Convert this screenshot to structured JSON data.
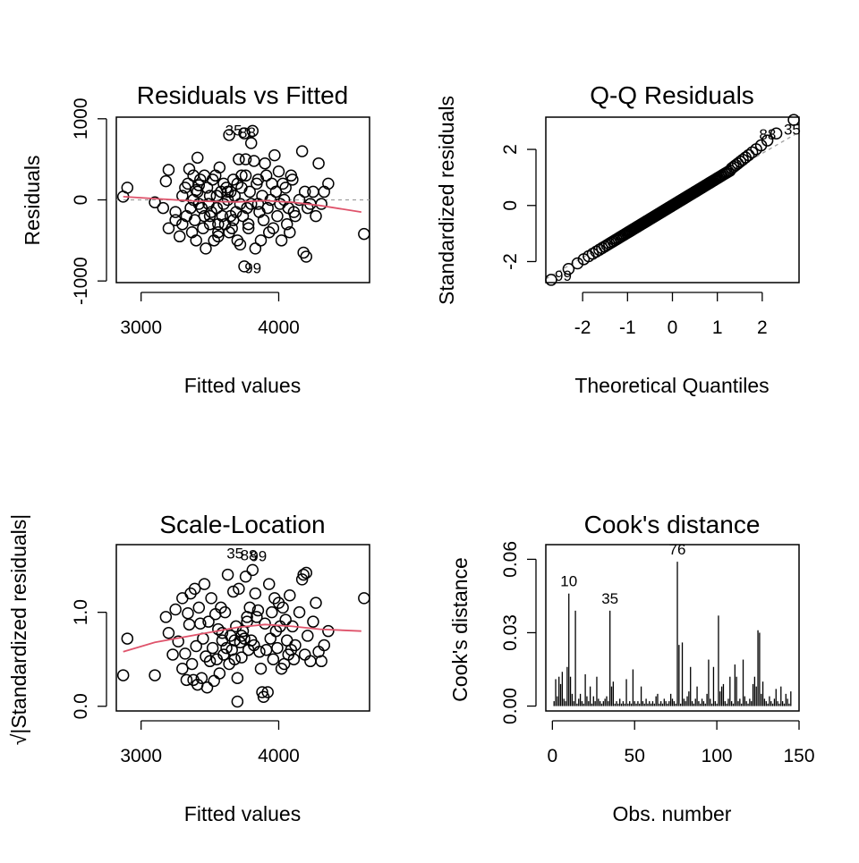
{
  "colors": {
    "smooth": "#DF536B",
    "ref": "#9E9E9E",
    "ink": "#000000"
  },
  "chart_data": [
    {
      "type": "scatter",
      "title": "Residuals vs Fitted",
      "xlabel": "Fitted values",
      "ylabel": "Residuals",
      "xlim": [
        2820,
        4660
      ],
      "ylim": [
        -1020,
        1020
      ],
      "xticks": [
        3000,
        4000
      ],
      "yticks": [
        -1000,
        0,
        1000
      ],
      "reference_y": 0,
      "smooth": [
        [
          2870,
          40
        ],
        [
          3100,
          15
        ],
        [
          3400,
          -15
        ],
        [
          3700,
          -25
        ],
        [
          3900,
          -10
        ],
        [
          4100,
          -30
        ],
        [
          4300,
          -70
        ],
        [
          4600,
          -150
        ]
      ],
      "outlier_labels": [
        {
          "text": "35",
          "x": 3650,
          "y": 860
        },
        {
          "text": "88",
          "x": 3750,
          "y": 830
        },
        {
          "text": "99",
          "x": 3790,
          "y": -840
        }
      ],
      "points": [
        [
          2870,
          40
        ],
        [
          2900,
          150
        ],
        [
          3100,
          -30
        ],
        [
          3200,
          -350
        ],
        [
          3250,
          -150
        ],
        [
          3160,
          -100
        ],
        [
          3180,
          230
        ],
        [
          3200,
          370
        ],
        [
          3250,
          -250
        ],
        [
          3280,
          -450
        ],
        [
          3300,
          50
        ],
        [
          3300,
          -300
        ],
        [
          3320,
          150
        ],
        [
          3330,
          -200
        ],
        [
          3340,
          200
        ],
        [
          3350,
          380
        ],
        [
          3360,
          -100
        ],
        [
          3370,
          -400
        ],
        [
          3380,
          300
        ],
        [
          3380,
          0
        ],
        [
          3390,
          -250
        ],
        [
          3400,
          120
        ],
        [
          3400,
          -500
        ],
        [
          3410,
          100
        ],
        [
          3410,
          520
        ],
        [
          3420,
          -50
        ],
        [
          3430,
          250
        ],
        [
          3440,
          -100
        ],
        [
          3450,
          -350
        ],
        [
          3460,
          300
        ],
        [
          3460,
          -200
        ],
        [
          3470,
          -600
        ],
        [
          3480,
          150
        ],
        [
          3490,
          -50
        ],
        [
          3500,
          50
        ],
        [
          3500,
          -300
        ],
        [
          3510,
          -150
        ],
        [
          3520,
          250
        ],
        [
          3530,
          -500
        ],
        [
          3540,
          300
        ],
        [
          3550,
          50
        ],
        [
          3550,
          -100
        ],
        [
          3560,
          -450
        ],
        [
          3560,
          -400
        ],
        [
          3570,
          400
        ],
        [
          3580,
          100
        ],
        [
          3590,
          -200
        ],
        [
          3600,
          200
        ],
        [
          3600,
          -50
        ],
        [
          3610,
          -300
        ],
        [
          3620,
          150
        ],
        [
          3630,
          0
        ],
        [
          3640,
          -400
        ],
        [
          3640,
          800
        ],
        [
          3650,
          100
        ],
        [
          3650,
          -200
        ],
        [
          3660,
          -350
        ],
        [
          3670,
          250
        ],
        [
          3680,
          50
        ],
        [
          3690,
          -150
        ],
        [
          3700,
          200
        ],
        [
          3700,
          -500
        ],
        [
          3710,
          500
        ],
        [
          3720,
          -50
        ],
        [
          3720,
          -550
        ],
        [
          3730,
          150
        ],
        [
          3740,
          -200
        ],
        [
          3750,
          820
        ],
        [
          3750,
          -820
        ],
        [
          3760,
          300
        ],
        [
          3760,
          500
        ],
        [
          3770,
          -100
        ],
        [
          3780,
          -300
        ],
        [
          3790,
          100
        ],
        [
          3800,
          700
        ],
        [
          3800,
          -50
        ],
        [
          3810,
          850
        ],
        [
          3820,
          480
        ],
        [
          3830,
          -600
        ],
        [
          3840,
          200
        ],
        [
          3850,
          250
        ],
        [
          3860,
          -150
        ],
        [
          3870,
          -500
        ],
        [
          3880,
          50
        ],
        [
          3890,
          -250
        ],
        [
          3900,
          450
        ],
        [
          3910,
          300
        ],
        [
          3920,
          -100
        ],
        [
          3930,
          -400
        ],
        [
          3940,
          0
        ],
        [
          3950,
          200
        ],
        [
          3960,
          -350
        ],
        [
          3970,
          550
        ],
        [
          3980,
          100
        ],
        [
          3990,
          -200
        ],
        [
          4000,
          350
        ],
        [
          4010,
          -50
        ],
        [
          4020,
          -500
        ],
        [
          4030,
          200
        ],
        [
          4040,
          0
        ],
        [
          4050,
          150
        ],
        [
          4060,
          -300
        ],
        [
          4070,
          -100
        ],
        [
          4080,
          -400
        ],
        [
          4090,
          300
        ],
        [
          4100,
          250
        ],
        [
          4110,
          -150
        ],
        [
          4120,
          -200
        ],
        [
          4150,
          0
        ],
        [
          4170,
          600
        ],
        [
          4180,
          -650
        ],
        [
          4190,
          100
        ],
        [
          4200,
          -700
        ],
        [
          4210,
          -100
        ],
        [
          4230,
          -50
        ],
        [
          4250,
          100
        ],
        [
          4270,
          -200
        ],
        [
          4290,
          450
        ],
        [
          4310,
          -50
        ],
        [
          4330,
          100
        ],
        [
          4360,
          200
        ],
        [
          4620,
          -420
        ],
        [
          3630,
          100
        ],
        [
          3560,
          -300
        ],
        [
          3420,
          180
        ],
        [
          3500,
          -200
        ],
        [
          3670,
          -250
        ],
        [
          3730,
          300
        ],
        [
          3780,
          -350
        ],
        [
          3850,
          -50
        ]
      ]
    },
    {
      "type": "scatter",
      "title": "Q-Q Residuals",
      "xlabel": "Theoretical Quantiles",
      "ylabel": "Standardized residuals",
      "xlim": [
        -2.82,
        2.82
      ],
      "ylim": [
        -2.75,
        3.15
      ],
      "xticks": [
        -2,
        -1,
        0,
        1,
        2
      ],
      "yticks": [
        -2,
        0,
        2
      ],
      "reference_line": [
        [
          -2.82,
          -2.62
        ],
        [
          2.82,
          2.62
        ]
      ],
      "n_points": 145,
      "outlier_labels": [
        {
          "text": "99",
          "x": -2.5,
          "y": -2.5
        },
        {
          "text": "88",
          "x": 2.05,
          "y": 2.55
        },
        {
          "text": "35",
          "x": 2.6,
          "y": 2.72
        }
      ]
    },
    {
      "type": "scatter",
      "title": "Scale-Location",
      "xlabel": "Fitted values",
      "ylabel": "√|Standardized residuals|",
      "xlim": [
        2820,
        4660
      ],
      "ylim": [
        -0.05,
        1.72
      ],
      "xticks": [
        3000,
        4000
      ],
      "yticks": [
        0.0,
        1.0
      ],
      "ytick_labels": [
        "0.0",
        "1.0"
      ],
      "smooth": [
        [
          2870,
          0.58
        ],
        [
          3100,
          0.68
        ],
        [
          3400,
          0.76
        ],
        [
          3700,
          0.84
        ],
        [
          3900,
          0.87
        ],
        [
          4100,
          0.85
        ],
        [
          4300,
          0.82
        ],
        [
          4600,
          0.8
        ]
      ],
      "outlier_labels": [
        {
          "text": "35",
          "x": 3660,
          "y": 1.63
        },
        {
          "text": "88",
          "x": 3760,
          "y": 1.61
        },
        {
          "text": "99",
          "x": 3830,
          "y": 1.6
        }
      ],
      "points": [
        [
          2870,
          0.33
        ],
        [
          2900,
          0.72
        ],
        [
          3100,
          0.33
        ],
        [
          3200,
          0.78
        ],
        [
          3250,
          1.03
        ],
        [
          3180,
          0.95
        ],
        [
          3230,
          0.55
        ],
        [
          3270,
          0.69
        ],
        [
          3300,
          1.15
        ],
        [
          3300,
          0.4
        ],
        [
          3320,
          0.56
        ],
        [
          3330,
          0.28
        ],
        [
          3340,
          0.99
        ],
        [
          3350,
          0.87
        ],
        [
          3360,
          1.2
        ],
        [
          3370,
          0.45
        ],
        [
          3380,
          0.28
        ],
        [
          3390,
          1.25
        ],
        [
          3400,
          0.64
        ],
        [
          3410,
          0.23
        ],
        [
          3420,
          1.05
        ],
        [
          3430,
          0.88
        ],
        [
          3440,
          0.3
        ],
        [
          3450,
          0.72
        ],
        [
          3460,
          1.3
        ],
        [
          3470,
          0.53
        ],
        [
          3480,
          0.2
        ],
        [
          3490,
          0.9
        ],
        [
          3500,
          0.48
        ],
        [
          3510,
          1.15
        ],
        [
          3520,
          0.62
        ],
        [
          3530,
          0.27
        ],
        [
          3540,
          0.98
        ],
        [
          3550,
          0.5
        ],
        [
          3560,
          0.82
        ],
        [
          3570,
          0.35
        ],
        [
          3580,
          1.05
        ],
        [
          3590,
          0.7
        ],
        [
          3600,
          0.55
        ],
        [
          3610,
          1.0
        ],
        [
          3620,
          0.62
        ],
        [
          3630,
          1.4
        ],
        [
          3640,
          0.45
        ],
        [
          3650,
          0.75
        ],
        [
          3660,
          0.6
        ],
        [
          3670,
          1.22
        ],
        [
          3680,
          0.5
        ],
        [
          3690,
          0.85
        ],
        [
          3700,
          0.05
        ],
        [
          3700,
          0.3
        ],
        [
          3710,
          1.25
        ],
        [
          3720,
          0.68
        ],
        [
          3730,
          0.75
        ],
        [
          3740,
          0.8
        ],
        [
          3750,
          0.72
        ],
        [
          3760,
          1.38
        ],
        [
          3770,
          0.9
        ],
        [
          3780,
          0.6
        ],
        [
          3790,
          1.05
        ],
        [
          3800,
          0.7
        ],
        [
          3810,
          1.45
        ],
        [
          3820,
          0.65
        ],
        [
          3830,
          1.2
        ],
        [
          3840,
          0.95
        ],
        [
          3850,
          1.02
        ],
        [
          3860,
          0.58
        ],
        [
          3870,
          0.4
        ],
        [
          3880,
          0.15
        ],
        [
          3890,
          0.1
        ],
        [
          3900,
          0.88
        ],
        [
          3910,
          0.6
        ],
        [
          3920,
          0.15
        ],
        [
          3930,
          1.3
        ],
        [
          3940,
          0.72
        ],
        [
          3950,
          1.0
        ],
        [
          3960,
          0.5
        ],
        [
          3970,
          1.15
        ],
        [
          3980,
          0.8
        ],
        [
          3990,
          0.62
        ],
        [
          4000,
          1.1
        ],
        [
          4010,
          0.85
        ],
        [
          4020,
          0.4
        ],
        [
          4030,
          1.05
        ],
        [
          4040,
          0.45
        ],
        [
          4050,
          0.92
        ],
        [
          4060,
          0.7
        ],
        [
          4070,
          0.55
        ],
        [
          4080,
          1.18
        ],
        [
          4090,
          0.6
        ],
        [
          4100,
          0.85
        ],
        [
          4110,
          0.5
        ],
        [
          4120,
          0.65
        ],
        [
          4150,
          1.0
        ],
        [
          4170,
          1.35
        ],
        [
          4180,
          1.4
        ],
        [
          4190,
          0.55
        ],
        [
          4200,
          1.42
        ],
        [
          4210,
          0.75
        ],
        [
          4230,
          0.48
        ],
        [
          4250,
          0.9
        ],
        [
          4270,
          1.1
        ],
        [
          4290,
          0.58
        ],
        [
          4310,
          0.48
        ],
        [
          4330,
          0.65
        ],
        [
          4360,
          0.8
        ],
        [
          4620,
          1.15
        ],
        [
          3590,
          0.78
        ],
        [
          3680,
          0.7
        ],
        [
          3730,
          0.52
        ],
        [
          3770,
          0.95
        ]
      ]
    },
    {
      "type": "bar",
      "title": "Cook's distance",
      "xlabel": "Obs. number",
      "ylabel": "Cook's distance",
      "xlim": [
        -4,
        150
      ],
      "ylim": [
        -0.002,
        0.066
      ],
      "xticks": [
        0,
        50,
        100,
        150
      ],
      "yticks": [
        0.0,
        0.03,
        0.06
      ],
      "ytick_labels": [
        "0.00",
        "0.03",
        "0.06"
      ],
      "outlier_labels": [
        {
          "text": "10",
          "x": 10,
          "y": 0.046
        },
        {
          "text": "35",
          "x": 35,
          "y": 0.039
        },
        {
          "text": "76",
          "x": 76,
          "y": 0.059
        }
      ],
      "values": [
        0.002,
        0.011,
        0.004,
        0.012,
        0.009,
        0.014,
        0.003,
        0.002,
        0.016,
        0.046,
        0.012,
        0.005,
        0.002,
        0.039,
        0.001,
        0.003,
        0.005,
        0.002,
        0.001,
        0.013,
        0.004,
        0.002,
        0.008,
        0.001,
        0.004,
        0.002,
        0.012,
        0.003,
        0.002,
        0.001,
        0.002,
        0.003,
        0.004,
        0.002,
        0.039,
        0.008,
        0.01,
        0.001,
        0.002,
        0.001,
        0.003,
        0.001,
        0.002,
        0.001,
        0.011,
        0.001,
        0.002,
        0.001,
        0.015,
        0.002,
        0.001,
        0.002,
        0.001,
        0.008,
        0.002,
        0.001,
        0.003,
        0.001,
        0.002,
        0.001,
        0.002,
        0.001,
        0.004,
        0.005,
        0.001,
        0.002,
        0.001,
        0.003,
        0.002,
        0.001,
        0.002,
        0.005,
        0.003,
        0.002,
        0.001,
        0.059,
        0.025,
        0.001,
        0.026,
        0.003,
        0.002,
        0.004,
        0.006,
        0.016,
        0.002,
        0.001,
        0.003,
        0.008,
        0.002,
        0.001,
        0.003,
        0.002,
        0.001,
        0.005,
        0.019,
        0.003,
        0.001,
        0.016,
        0.002,
        0.001,
        0.037,
        0.006,
        0.008,
        0.009,
        0.002,
        0.001,
        0.003,
        0.012,
        0.002,
        0.001,
        0.017,
        0.012,
        0.002,
        0.003,
        0.001,
        0.019,
        0.004,
        0.002,
        0.001,
        0.003,
        0.002,
        0.009,
        0.012,
        0.008,
        0.031,
        0.03,
        0.005,
        0.01,
        0.003,
        0.002,
        0.001,
        0.004,
        0.002,
        0.001,
        0.003,
        0.007,
        0.002,
        0.001,
        0.008,
        0.002,
        0.001,
        0.005,
        0.003,
        0.001,
        0.006
      ]
    }
  ]
}
